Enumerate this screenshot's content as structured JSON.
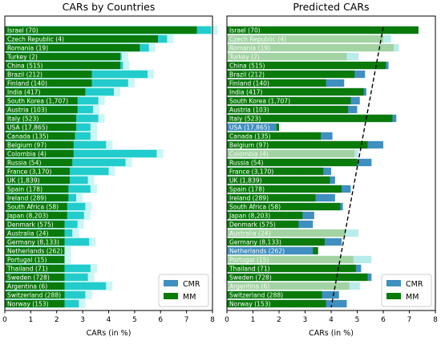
{
  "colors": {
    "mm": "#0a7a0a",
    "cmr_overlay": "#3f8fc0",
    "cmr_bar": "#22cccc",
    "cmr_halo": "#cbf6f6",
    "mm_faded": "#a3d3a3",
    "cmr_faded": "#b8ecec",
    "row_label": "#ffffff",
    "row_label_faded": "#f4fbf4"
  },
  "chart_data": [
    {
      "type": "bar",
      "orientation": "horizontal",
      "title": "CARs by Countries",
      "xlabel": "CARs (in %)",
      "xlim": [
        0,
        8
      ],
      "xticks": [
        0,
        1,
        2,
        3,
        4,
        5,
        6,
        7,
        8
      ],
      "legend": {
        "placement": "bottom-right",
        "entries": [
          "CMR",
          "MM"
        ]
      },
      "categories": [
        "Israel (70)",
        "Czech Republic (4)",
        "Romania (19)",
        "Turkey (2)",
        "China (515)",
        "Brazil (212)",
        "Finland (140)",
        "India (417)",
        "South Korea (1,707)",
        "Austria (103)",
        "Italy (523)",
        "USA (17,865)",
        "Canada (135)",
        "Belgium (97)",
        "Colombia (4)",
        "Russia (54)",
        "France (3,170)",
        "UK (1,839)",
        "Spain (178)",
        "Ireland (289)",
        "South Africa (58)",
        "Japan (8,203)",
        "Denmark (575)",
        "Australia (24)",
        "Germany (8,133)",
        "Netherlands (262)",
        "Portugal (15)",
        "Thailand (71)",
        "Sweden (728)",
        "Argentina (6)",
        "Switzerland (288)",
        "Norway (153)"
      ],
      "series": [
        {
          "name": "CMR",
          "values": [
            7.95,
            6.25,
            5.55,
            4.5,
            4.55,
            5.5,
            4.75,
            4.2,
            3.6,
            3.4,
            3.6,
            3.3,
            3.3,
            3.9,
            5.85,
            4.65,
            4.0,
            3.2,
            3.3,
            2.75,
            3.1,
            3.05,
            2.8,
            2.6,
            3.25,
            2.3,
            2.3,
            3.3,
            3.2,
            3.9,
            3.1,
            2.85
          ]
        },
        {
          "name": "MM",
          "values": [
            7.4,
            5.9,
            5.2,
            4.45,
            4.45,
            3.35,
            3.35,
            3.1,
            2.8,
            2.8,
            2.75,
            2.75,
            2.7,
            2.65,
            2.65,
            2.6,
            2.5,
            2.5,
            2.45,
            2.45,
            2.4,
            2.4,
            2.3,
            2.3,
            2.3,
            2.3,
            2.3,
            2.3,
            2.3,
            2.3,
            2.3,
            2.3
          ]
        }
      ]
    },
    {
      "type": "bar",
      "orientation": "horizontal",
      "title": "Predicted CARs",
      "xlabel": "CARs (in %)",
      "xlim": [
        0,
        8
      ],
      "xticks": [
        0,
        1,
        2,
        3,
        4,
        5,
        6,
        7,
        8
      ],
      "legend": {
        "placement": "bottom-right",
        "entries": [
          "CMR",
          "MM"
        ]
      },
      "categories": [
        "Israel (70)",
        "Czech Republic (4)",
        "Romania (19)",
        "Turkey (2)",
        "China (515)",
        "Brazil (212)",
        "Finland (140)",
        "India (417)",
        "South Korea (1,707)",
        "Austria (103)",
        "Italy (523)",
        "USA (17,865)",
        "Canada (135)",
        "Belgium (97)",
        "Colombia (4)",
        "Russia (54)",
        "France (3,170)",
        "UK (1,839)",
        "Spain (178)",
        "Ireland (289)",
        "South Africa (58)",
        "Japan (8,203)",
        "Denmark (575)",
        "Australia (24)",
        "Germany (8,133)",
        "Netherlands (262)",
        "Portugal (15)",
        "Thailand (71)",
        "Sweden (728)",
        "Argentina (6)",
        "Switzerland (288)",
        "Norway (153)"
      ],
      "faded": [
        false,
        true,
        true,
        true,
        false,
        false,
        false,
        false,
        false,
        false,
        false,
        false,
        false,
        false,
        true,
        false,
        false,
        false,
        false,
        false,
        false,
        false,
        false,
        true,
        false,
        false,
        true,
        false,
        false,
        true,
        false,
        false
      ],
      "series": [
        {
          "name": "CMR",
          "values": [
            7.35,
            6.3,
            6.6,
            5.05,
            6.2,
            5.3,
            4.5,
            5.35,
            5.1,
            5.0,
            6.5,
            1.9,
            4.05,
            6.0,
            5.05,
            5.55,
            4.0,
            4.15,
            4.75,
            4.15,
            4.45,
            3.35,
            3.3,
            5.05,
            4.4,
            3.3,
            5.55,
            5.15,
            5.55,
            5.1,
            4.3,
            4.6
          ]
        },
        {
          "name": "MM",
          "values": [
            7.35,
            6.0,
            6.4,
            4.6,
            6.1,
            4.9,
            3.8,
            5.25,
            4.75,
            4.65,
            6.35,
            2.0,
            3.6,
            5.4,
            4.9,
            5.0,
            3.7,
            3.95,
            4.4,
            3.4,
            4.35,
            2.9,
            2.75,
            4.55,
            3.75,
            3.5,
            4.85,
            4.95,
            5.4,
            4.7,
            3.65,
            3.8
          ]
        }
      ],
      "trend_line": {
        "style": "dashed",
        "x_start": 6.0,
        "x_end": 4.0
      }
    }
  ]
}
